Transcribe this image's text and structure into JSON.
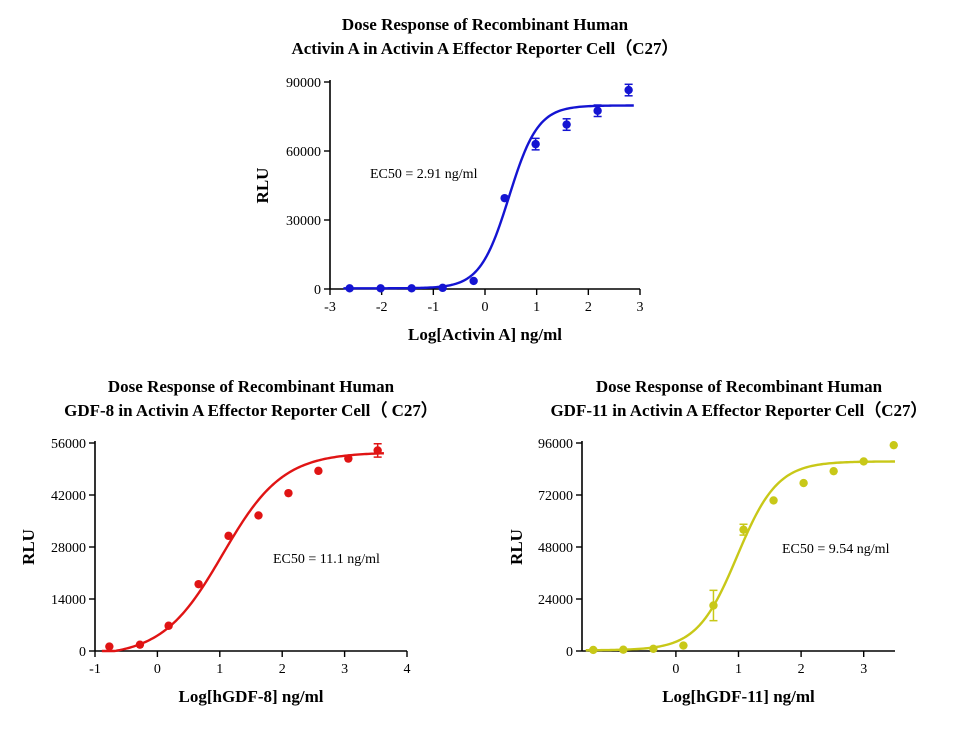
{
  "chart_data": [
    {
      "type": "scatter",
      "title_lines": [
        "Dose Response of Recombinant Human",
        "Activin A in Activin A Effector Reporter Cell（C27）"
      ],
      "xlabel": "Log[Activin A] ng/ml",
      "ylabel": "RLU",
      "annotation": "EC50 = 2.91 ng/ml",
      "color": "#1414d2",
      "xlim": [
        -3,
        3
      ],
      "ylim": [
        0,
        90000
      ],
      "xticks": [
        -3,
        -2,
        -1,
        0,
        1,
        2,
        3
      ],
      "yticks": [
        0,
        30000,
        60000,
        90000
      ],
      "xtick_labels": [
        "-3",
        "-2",
        "-1",
        "0",
        "1",
        "2",
        "3"
      ],
      "ytick_labels": [
        "0",
        "30000",
        "60000",
        "90000"
      ],
      "points": {
        "x": [
          -2.62,
          -2.02,
          -1.42,
          -0.82,
          -0.22,
          0.38,
          0.98,
          1.58,
          2.18,
          2.78
        ],
        "y": [
          300,
          300,
          300,
          500,
          3500,
          39500,
          63000,
          71500,
          77500,
          86500
        ],
        "err": [
          0,
          0,
          0,
          0,
          0,
          0,
          2500,
          2500,
          2500,
          2500
        ]
      },
      "fit": {
        "bottom": 300,
        "top": 79800,
        "log_ec50": 0.464,
        "hill": 1.55
      }
    },
    {
      "type": "scatter",
      "title_lines": [
        "Dose Response of Recombinant Human",
        "GDF-8 in Activin A Effector Reporter Cell（ C27）"
      ],
      "xlabel": "Log[hGDF-8] ng/ml",
      "ylabel": "RLU",
      "annotation": "EC50 = 11.1 ng/ml",
      "color": "#e01414",
      "xlim": [
        -1,
        4
      ],
      "ylim": [
        0,
        56000
      ],
      "xticks": [
        -1,
        0,
        1,
        2,
        3,
        4
      ],
      "yticks": [
        0,
        14000,
        28000,
        42000,
        56000
      ],
      "xtick_labels": [
        "-1",
        "0",
        "1",
        "2",
        "3",
        "4"
      ],
      "ytick_labels": [
        "0",
        "14000",
        "28000",
        "42000",
        "56000"
      ],
      "points": {
        "x": [
          -0.77,
          -0.28,
          0.18,
          0.66,
          1.14,
          1.62,
          2.1,
          2.58,
          3.06,
          3.53
        ],
        "y": [
          1200,
          1700,
          6800,
          18000,
          31000,
          36500,
          42500,
          48500,
          51800,
          54000
        ],
        "err": [
          0,
          0,
          0,
          0,
          0,
          0,
          0,
          0,
          0,
          1800
        ]
      },
      "fit": {
        "bottom": -1500,
        "top": 53500,
        "log_ec50": 1.045,
        "hill": 0.9
      }
    },
    {
      "type": "scatter",
      "title_lines": [
        "Dose Response of Recombinant Human",
        "GDF-11 in Activin A Effector Reporter Cell（C27）"
      ],
      "xlabel": "Log[hGDF-11] ng/ml",
      "ylabel": "RLU",
      "annotation": "EC50 = 9.54 ng/ml",
      "color": "#c8c818",
      "xlim": [
        -1.5,
        3.5
      ],
      "ylim": [
        0,
        96000
      ],
      "xticks": [
        0,
        1,
        2,
        3
      ],
      "yticks": [
        0,
        24000,
        48000,
        72000,
        96000
      ],
      "xtick_labels": [
        "0",
        "1",
        "2",
        "3"
      ],
      "ytick_labels": [
        "0",
        "24000",
        "48000",
        "72000",
        "96000"
      ],
      "points": {
        "x": [
          -1.32,
          -0.84,
          -0.36,
          0.12,
          0.6,
          1.08,
          1.56,
          2.04,
          2.52,
          3.0,
          3.48
        ],
        "y": [
          500,
          600,
          1000,
          2500,
          21000,
          56000,
          69500,
          77500,
          83000,
          87500,
          95000
        ],
        "err": [
          0,
          0,
          0,
          0,
          7000,
          2500,
          0,
          0,
          0,
          0,
          0
        ]
      },
      "fit": {
        "bottom": 300,
        "top": 87500,
        "log_ec50": 0.98,
        "hill": 1.35
      }
    }
  ]
}
